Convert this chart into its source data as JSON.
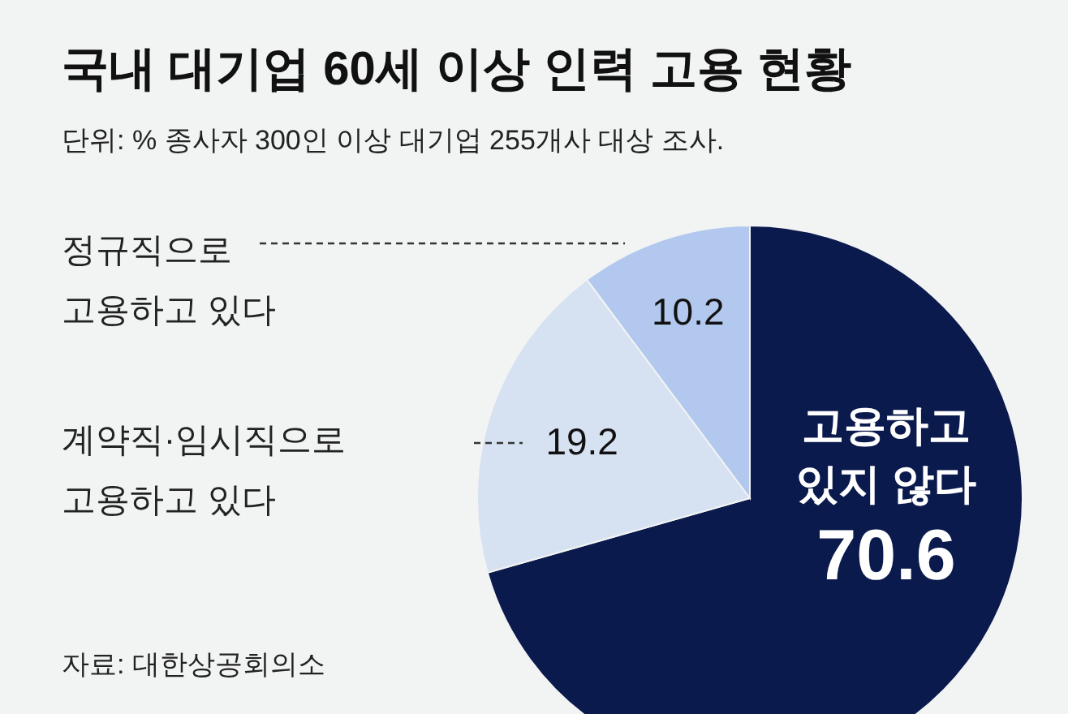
{
  "chart_data": {
    "type": "pie",
    "title": "국내 대기업 60세 이상 인력 고용 현황",
    "subtitle": "단위: %  종사자 300인 이상 대기업 255개사 대상 조사.",
    "categories": [
      "고용하고\n있지 않다",
      "계약직·임시직으로\n고용하고 있다",
      "정규직으로\n고용하고 있다"
    ],
    "values": [
      70.6,
      19.2,
      10.2
    ],
    "colors": [
      "#0b1a4d",
      "#d6e1f1",
      "#b2c8ee"
    ],
    "data_labels": true,
    "annotations": [
      "자료: 대한상공회의소"
    ]
  }
}
